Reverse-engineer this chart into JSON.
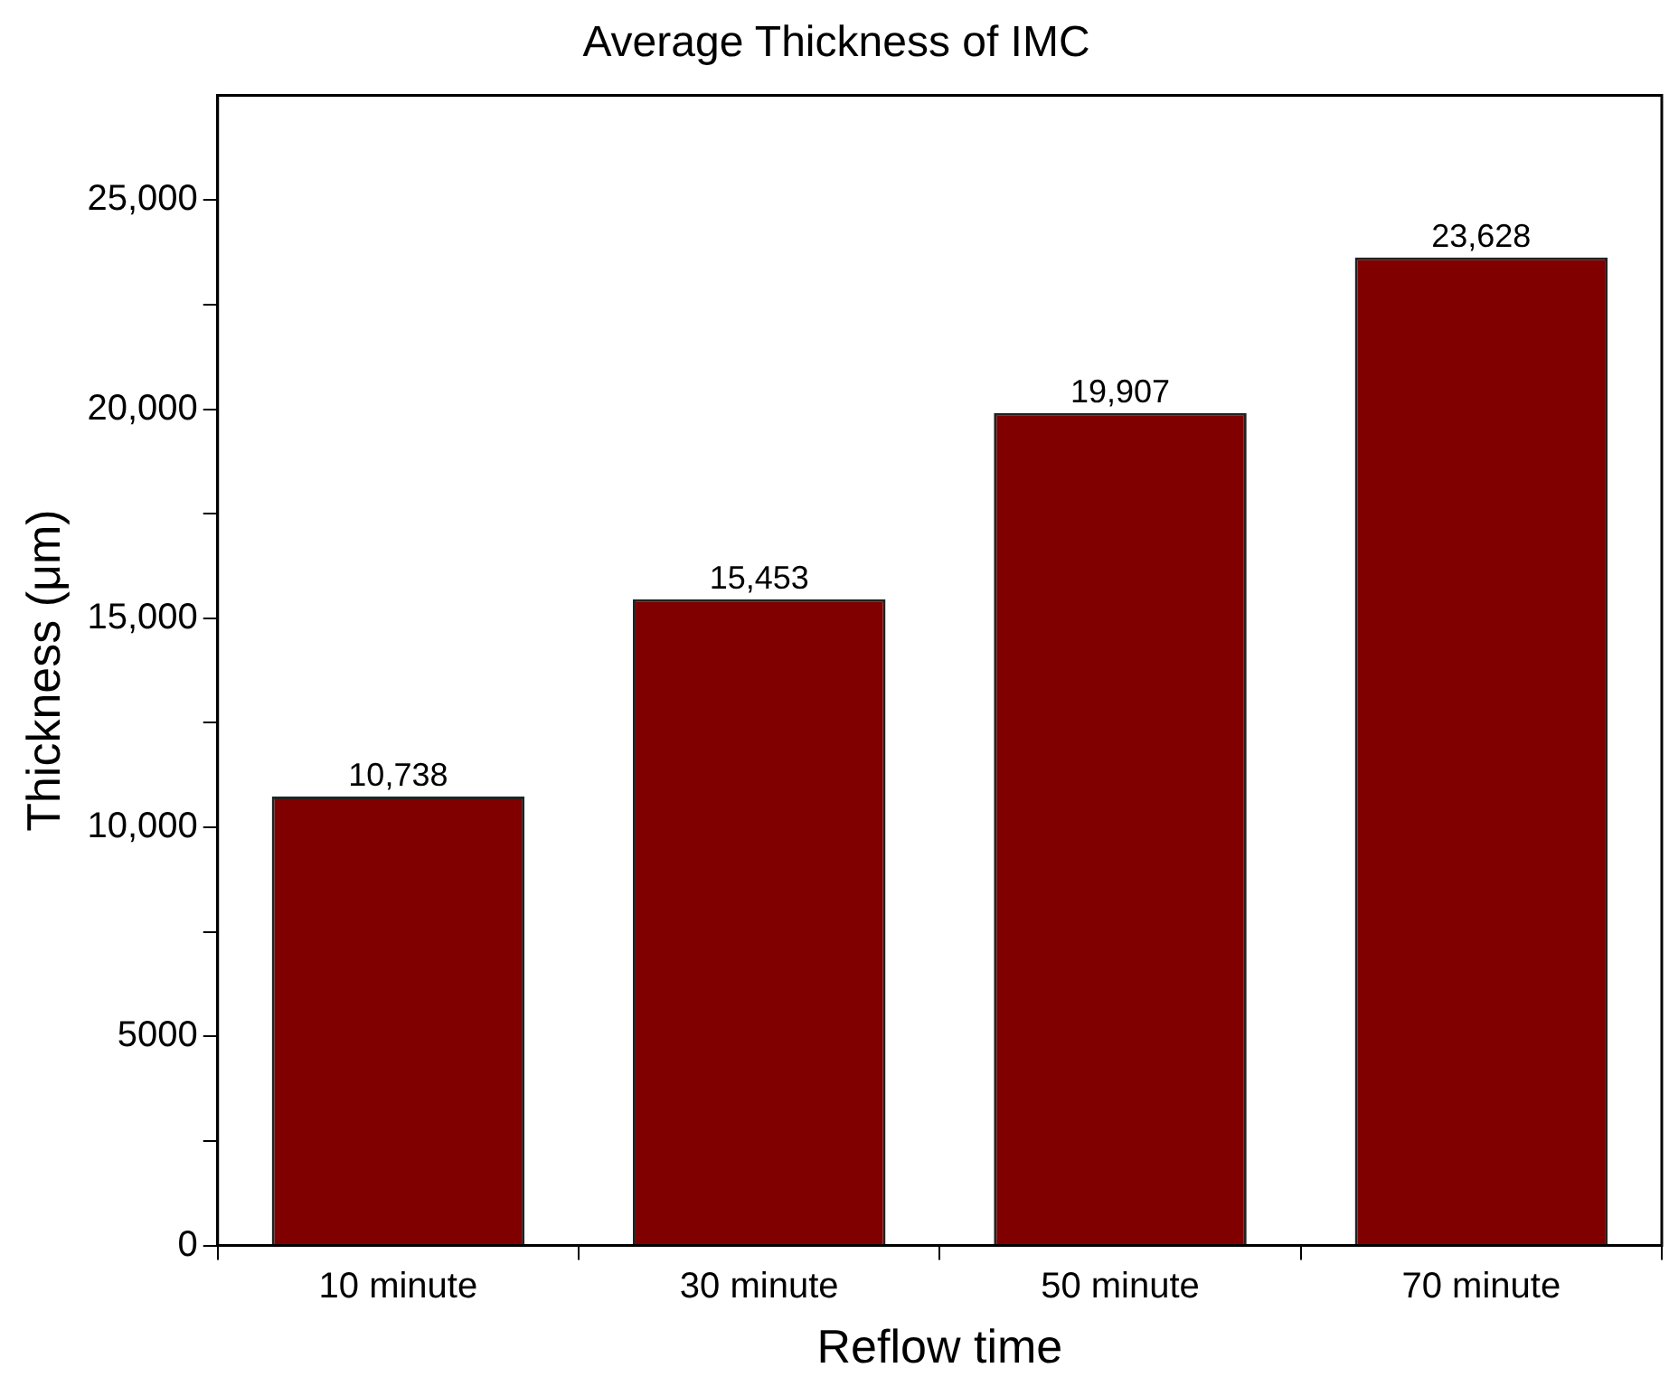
{
  "chart_data": {
    "type": "bar",
    "title": "Average Thickness of IMC",
    "xlabel": "Reflow time",
    "ylabel": "Thickness (μm)",
    "categories": [
      "10 minute",
      "30 minute",
      "50 minute",
      "70 minute"
    ],
    "values": [
      10738,
      15453,
      19907,
      23628
    ],
    "value_labels": [
      "10,738",
      "15,453",
      "19,907",
      "23,628"
    ],
    "color": "#800000",
    "ylim": [
      0,
      27500
    ],
    "yticks": [
      0,
      {
        "value": 2500,
        "label": null
      },
      5000,
      {
        "value": 7500,
        "label": null
      },
      {
        "value": 10000,
        "label": "10,000"
      },
      {
        "value": 12500,
        "label": null
      },
      {
        "value": 15000,
        "label": "15,000"
      },
      {
        "value": 17500,
        "label": null
      },
      {
        "value": 20000,
        "label": "20,000"
      },
      {
        "value": 22500,
        "label": null
      },
      {
        "value": 25000,
        "label": "25,000"
      }
    ],
    "grid": false,
    "legend": false
  }
}
